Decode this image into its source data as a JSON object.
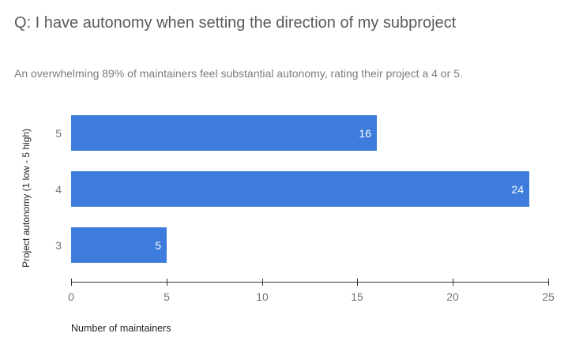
{
  "chart_data": {
    "type": "bar",
    "orientation": "horizontal",
    "title": "Q: I have autonomy when setting the direction of my subproject",
    "subtitle": "An overwhelming 89% of maintainers feel substantial autonomy, rating their project a 4 or 5.",
    "categories": [
      "5",
      "4",
      "3"
    ],
    "values": [
      16,
      24,
      5
    ],
    "value_labels": [
      "16",
      "24",
      "5"
    ],
    "xlabel": "Number of maintainers",
    "ylabel": "Project autonomy (1 low - 5 high)",
    "xlim": [
      0,
      25
    ],
    "xticks": [
      "0",
      "5",
      "10",
      "15",
      "20",
      "25"
    ],
    "grid": false,
    "legend": "none",
    "colors": {
      "bar": "#3d7bdd",
      "value_label": "#ffffff",
      "tick_label": "#757575",
      "category_label": "#757575",
      "axis_line": "#333333",
      "title": "#5a5a5a",
      "subtitle": "#7d7d7d",
      "axis_title": "#1f1f1f",
      "background": "#ffffff"
    }
  }
}
